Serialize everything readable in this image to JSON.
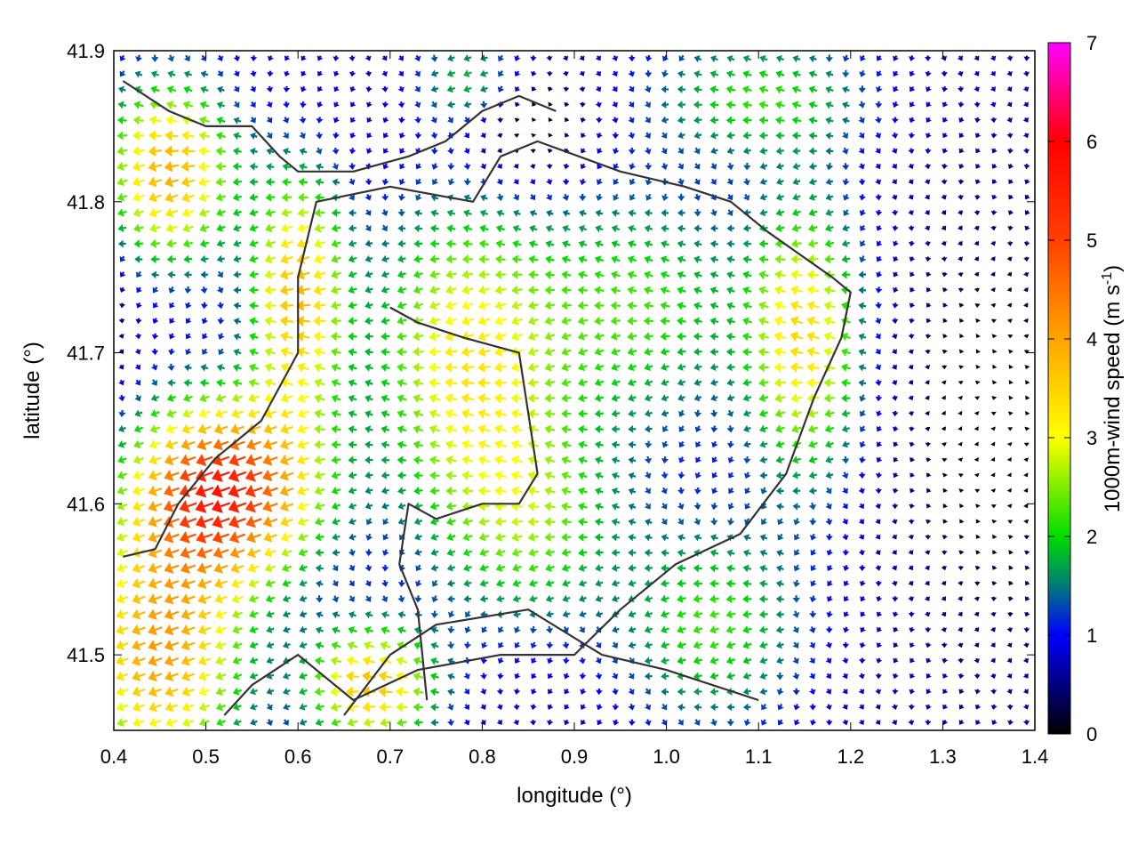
{
  "chart_data": {
    "type": "vector-field",
    "xlabel": "longitude (°)",
    "ylabel": "latitude (°)",
    "colorbar_label": "1000m-wind speed (m s",
    "colorbar_label_sup": "-1",
    "colorbar_label_close": ")",
    "xlim": [
      0.4,
      1.4
    ],
    "ylim": [
      41.45,
      41.9
    ],
    "xticks": [
      "0.4",
      "0.5",
      "0.6",
      "0.7",
      "0.8",
      "0.9",
      "1.0",
      "1.1",
      "1.2",
      "1.3",
      "1.4"
    ],
    "yticks": [
      "41.5",
      "41.6",
      "41.7",
      "41.8",
      "41.9"
    ],
    "colorbar_range": [
      0,
      7
    ],
    "colorbar_ticks": [
      "0",
      "1",
      "2",
      "3",
      "4",
      "5",
      "6",
      "7"
    ],
    "colormap": [
      "#000000",
      "#0000ff",
      "#00dd00",
      "#ffff00",
      "#ffa500",
      "#ff0000",
      "#ff00ff"
    ],
    "contour_color": "#333333",
    "grid": false,
    "wind_field_summary": {
      "max_speed_region": {
        "lon": 0.52,
        "lat": 41.61,
        "speed": 5.6
      },
      "dominant_direction": "westward"
    },
    "contours": [
      [
        [
          0.41,
          41.565
        ],
        [
          0.445,
          41.57
        ],
        [
          0.47,
          41.6
        ],
        [
          0.51,
          41.63
        ],
        [
          0.56,
          41.655
        ],
        [
          0.6,
          41.7
        ],
        [
          0.6,
          41.75
        ],
        [
          0.62,
          41.8
        ],
        [
          0.7,
          41.81
        ],
        [
          0.79,
          41.8
        ],
        [
          0.82,
          41.83
        ],
        [
          0.86,
          41.84
        ],
        [
          0.95,
          41.82
        ],
        [
          1.02,
          41.81
        ],
        [
          1.07,
          41.8
        ],
        [
          1.11,
          41.78
        ],
        [
          1.18,
          41.75
        ],
        [
          1.2,
          41.74
        ],
        [
          1.19,
          41.71
        ],
        [
          1.16,
          41.67
        ],
        [
          1.13,
          41.62
        ],
        [
          1.08,
          41.58
        ],
        [
          1.01,
          41.56
        ],
        [
          0.95,
          41.53
        ],
        [
          0.9,
          41.5
        ],
        [
          0.82,
          41.5
        ],
        [
          0.73,
          41.49
        ],
        [
          0.66,
          41.47
        ],
        [
          0.6,
          41.5
        ],
        [
          0.55,
          41.48
        ],
        [
          0.52,
          41.46
        ]
      ],
      [
        [
          0.41,
          41.88
        ],
        [
          0.46,
          41.86
        ],
        [
          0.5,
          41.85
        ],
        [
          0.55,
          41.85
        ],
        [
          0.58,
          41.83
        ],
        [
          0.6,
          41.82
        ],
        [
          0.66,
          41.82
        ],
        [
          0.72,
          41.83
        ],
        [
          0.76,
          41.84
        ],
        [
          0.8,
          41.86
        ],
        [
          0.84,
          41.87
        ],
        [
          0.88,
          41.86
        ]
      ],
      [
        [
          0.7,
          41.73
        ],
        [
          0.73,
          41.72
        ],
        [
          0.78,
          41.71
        ],
        [
          0.84,
          41.7
        ],
        [
          0.85,
          41.66
        ],
        [
          0.86,
          41.62
        ],
        [
          0.84,
          41.6
        ],
        [
          0.8,
          41.6
        ],
        [
          0.75,
          41.59
        ],
        [
          0.72,
          41.6
        ],
        [
          0.71,
          41.56
        ],
        [
          0.73,
          41.53
        ],
        [
          0.74,
          41.47
        ]
      ],
      [
        [
          0.65,
          41.46
        ],
        [
          0.7,
          41.5
        ],
        [
          0.75,
          41.52
        ],
        [
          0.85,
          41.53
        ],
        [
          0.93,
          41.5
        ],
        [
          1.0,
          41.49
        ],
        [
          1.05,
          41.48
        ],
        [
          1.1,
          41.47
        ]
      ]
    ]
  }
}
